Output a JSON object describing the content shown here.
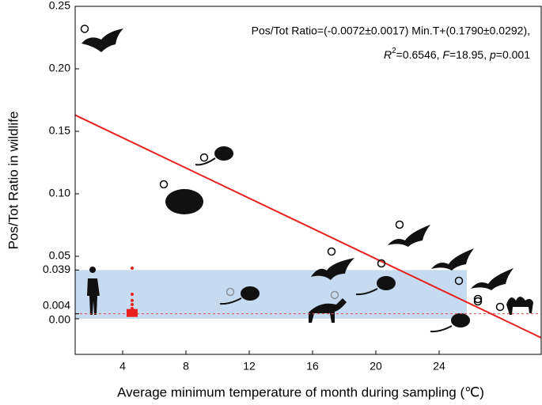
{
  "chart_data": {
    "type": "scatter",
    "annotation_line1": "Pos/Tot Ratio=(-0.0072±0.0017) Min.T+(0.1790±0.0292),",
    "annotation_line2": [
      "R",
      "2",
      "=0.6546, ",
      "F",
      "=18.95, ",
      "p",
      "=0.001"
    ],
    "x_label": "Average minimum temperature of month during sampling (℃)",
    "y_label": "Pos/Tot Ratio in wildlife",
    "xlim": [
      1,
      30.45
    ],
    "ylim": [
      -0.0285,
      0.25
    ],
    "xticks": [
      4,
      8,
      12,
      16,
      20,
      24
    ],
    "yticks": [
      {
        "value": 0,
        "label": "0.00"
      },
      0.004,
      0.039,
      0.05,
      {
        "value": 0.1,
        "label": "0.10"
      },
      0.15,
      {
        "value": 0.2,
        "label": "0.20"
      },
      0.25
    ],
    "band": {
      "x": [
        1,
        25.75
      ],
      "y": [
        0,
        0.039
      ],
      "color": "#c6dbef"
    },
    "reference_line": {
      "y": 0.004,
      "color": "#e05050"
    },
    "fit_line": {
      "x": [
        1,
        30.45
      ],
      "y": [
        0.163,
        -0.0152
      ],
      "color": "#e8201e"
    },
    "series": [
      {
        "name": "wildlife",
        "color": "#000000",
        "x": [
          1.6,
          9.15,
          6.6,
          17.2,
          20.35,
          21.5,
          25.25,
          26.45,
          26.45,
          27.85
        ],
        "values": [
          0.232,
          0.129,
          0.1076,
          0.0538,
          0.0443,
          0.0753,
          0.0304,
          0.0158,
          0.0139,
          0.0095
        ]
      },
      {
        "name": "wildlife-negative-region",
        "color": "#8a9099",
        "x": [
          10.8,
          17.4
        ],
        "values": [
          0.0215,
          0.019
        ]
      },
      {
        "name": "human",
        "color": "#e8201e",
        "x": [
          4.6,
          4.6,
          4.6,
          4.6,
          4.6,
          4.6
        ],
        "values": [
          0.0405,
          0.0196,
          0.0146,
          0.0114,
          0.0082,
          0.004
        ]
      }
    ]
  }
}
